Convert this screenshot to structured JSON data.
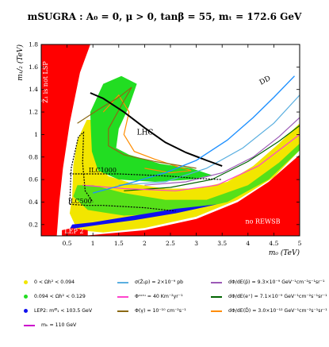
{
  "title": "mSUGRA : A₀ = 0, μ > 0, tanβ = 55, mₜ = 172.6 GeV",
  "chart_data": {
    "type": "area",
    "xlabel": "m₀ (TeV)",
    "ylabel": "m₁/₂ (TeV)",
    "xlim": [
      0,
      5
    ],
    "ylim": [
      0.1,
      1.8
    ],
    "xticks": [
      "0.5",
      "1",
      "1.5",
      "2",
      "2.5",
      "3",
      "3.5",
      "4",
      "4.5",
      "5"
    ],
    "yticks": [
      "0.2",
      "0.4",
      "0.6",
      "0.8",
      "1",
      "1.2",
      "1.4",
      "1.6",
      "1.8"
    ],
    "regions": {
      "stau_lsp": {
        "label": "Z̃₁ is not LSP",
        "color": "#ff0000"
      },
      "no_rewsb": {
        "label": "no REWSB",
        "color": "#ff0000"
      },
      "lep2": {
        "label": "LEP 2"
      }
    },
    "curves": [
      {
        "name": "LHC",
        "color": "#000000",
        "x": [
          0.95,
          1.2,
          1.6,
          2.0,
          2.4,
          2.8,
          3.2,
          3.5
        ],
        "y": [
          1.37,
          1.32,
          1.2,
          1.06,
          0.93,
          0.84,
          0.77,
          0.72
        ]
      },
      {
        "name": "DD",
        "color": "#1e90ff",
        "x": [
          1.0,
          1.8,
          2.4,
          3.0,
          3.6,
          4.1,
          4.5,
          4.9
        ],
        "y": [
          0.48,
          0.58,
          0.66,
          0.77,
          0.95,
          1.15,
          1.33,
          1.52
        ]
      },
      {
        "name": "ILC1000",
        "color": "#000000",
        "x": [
          0.55,
          1.0,
          1.5,
          2.0,
          2.5,
          3.0,
          3.5
        ],
        "y": [
          0.65,
          0.65,
          0.65,
          0.64,
          0.63,
          0.61,
          0.6
        ]
      },
      {
        "name": "ILC500",
        "color": "#000000",
        "x": [
          0.55,
          0.9,
          1.2,
          1.6,
          2.0,
          2.6
        ],
        "y": [
          0.38,
          0.37,
          0.37,
          0.36,
          0.35,
          0.32
        ]
      }
    ],
    "annotations": [
      "LHC",
      "DD",
      "ILC1000",
      "ILC500",
      "LEP 2",
      "no REWSB",
      "Z̃₁ is not LSP"
    ]
  },
  "legend": [
    {
      "text": "0 < Ωh² < 0.094",
      "color": "#f2e600",
      "kind": "dot"
    },
    {
      "text": "σ(Z̃₁p) = 2×10⁻⁹ pb",
      "color": "#5aafe0",
      "kind": "line"
    },
    {
      "text": "dΦ/dE(p̄) = 9.3×10⁻⁹ GeV⁻¹cm⁻²s⁻¹sr⁻¹",
      "color": "#9b59b6",
      "kind": "line"
    },
    {
      "text": "0.094 < Ωh² < 0.129",
      "color": "#22dd22",
      "kind": "dot"
    },
    {
      "text": "Φᶜᵒʳᵘ = 40 Km⁻²yr⁻¹",
      "color": "#ff44cc",
      "kind": "line"
    },
    {
      "text": "dΦ/dE(e⁺) = 7.1×10⁻⁹ GeV⁻¹cm⁻²s⁻¹sr⁻¹",
      "color": "#006400",
      "kind": "line"
    },
    {
      "text": "LEP2: mᵂ̃₁ < 103.5 GeV",
      "color": "#1010ee",
      "kind": "dot"
    },
    {
      "text": "Φ(γ) = 10⁻¹⁰ cm⁻²s⁻¹",
      "color": "#8b6914",
      "kind": "line"
    },
    {
      "text": "dΦ/dE(D̄) = 3.0×10⁻¹² GeV⁻¹cm⁻²s⁻¹sr⁻¹",
      "color": "#ff8c00",
      "kind": "line"
    },
    {
      "text": "mₕ = 110 GeV",
      "color": "#cc00cc",
      "kind": "line"
    }
  ]
}
